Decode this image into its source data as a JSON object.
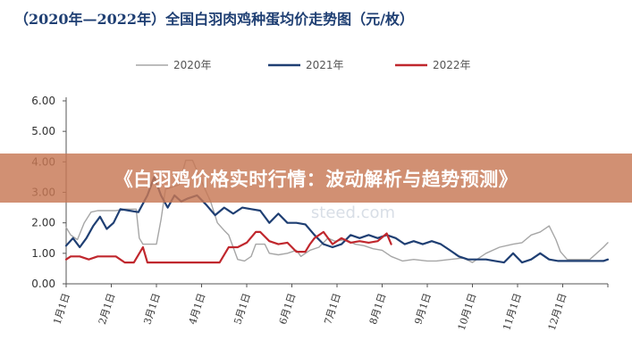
{
  "title": "（2020年—2022年）全国白羽肉鸡种蛋均价走势图（元/枚）",
  "banner": "《白羽鸡价格实时行情：波动解析与趋势预测》",
  "chart_data": {
    "type": "line",
    "title": "（2020年—2022年）全国白羽肉鸡种蛋均价走势图（元/枚）",
    "xlabel": "",
    "ylabel": "",
    "ylim": [
      0,
      6
    ],
    "yticks": [
      "0.00",
      "1.00",
      "2.00",
      "3.00",
      "4.00",
      "5.00",
      "6.00"
    ],
    "categories": [
      "1月1日",
      "2月1日",
      "3月1日",
      "4月1日",
      "5月1日",
      "6月1日",
      "7月1日",
      "8月1日",
      "9月1日",
      "10月1日",
      "11月1日",
      "12月1日"
    ],
    "x_range_months": [
      1,
      13
    ],
    "grid": false,
    "legend_position": "top",
    "series": [
      {
        "name": "2020年",
        "color": "#a6a6a6",
        "x": [
          1.0,
          1.1,
          1.25,
          1.4,
          1.55,
          1.7,
          1.9,
          2.1,
          2.3,
          2.45,
          2.55,
          2.62,
          2.7,
          2.85,
          3.0,
          3.1,
          3.2,
          3.5,
          3.65,
          3.8,
          4.0,
          4.2,
          4.35,
          4.5,
          4.6,
          4.8,
          4.95,
          5.1,
          5.2,
          5.4,
          5.5,
          5.7,
          5.9,
          6.1,
          6.2,
          6.4,
          6.6,
          6.8,
          6.95,
          7.2,
          7.4,
          7.6,
          7.8,
          8.0,
          8.2,
          8.45,
          8.7,
          9.0,
          9.2,
          9.5,
          9.8,
          10.0,
          10.3,
          10.6,
          10.9,
          11.1,
          11.3,
          11.5,
          11.7,
          11.85,
          11.95,
          12.1,
          12.3,
          12.6,
          12.9,
          13.0
        ],
        "y": [
          1.85,
          1.6,
          1.45,
          2.0,
          2.35,
          2.4,
          2.4,
          2.4,
          2.45,
          2.45,
          2.45,
          1.5,
          1.3,
          1.3,
          1.3,
          2.1,
          3.1,
          3.25,
          4.05,
          4.05,
          3.35,
          2.7,
          2.0,
          1.75,
          1.6,
          0.8,
          0.75,
          0.9,
          1.3,
          1.3,
          1.0,
          0.95,
          1.0,
          1.1,
          0.9,
          1.1,
          1.2,
          1.5,
          1.4,
          1.45,
          1.3,
          1.25,
          1.15,
          1.1,
          0.9,
          0.75,
          0.8,
          0.75,
          0.75,
          0.8,
          0.85,
          0.7,
          1.0,
          1.2,
          1.3,
          1.35,
          1.6,
          1.7,
          1.9,
          1.45,
          1.05,
          0.8,
          0.8,
          0.8,
          1.2,
          1.35
        ]
      },
      {
        "name": "2021年",
        "color": "#1f3f73",
        "x": [
          1.0,
          1.15,
          1.3,
          1.45,
          1.6,
          1.75,
          1.9,
          2.05,
          2.2,
          2.4,
          2.6,
          2.8,
          2.95,
          3.1,
          3.25,
          3.4,
          3.55,
          3.7,
          3.9,
          4.1,
          4.3,
          4.5,
          4.7,
          4.9,
          5.1,
          5.3,
          5.5,
          5.7,
          5.9,
          6.1,
          6.3,
          6.5,
          6.7,
          6.9,
          7.1,
          7.3,
          7.5,
          7.7,
          7.9,
          8.1,
          8.3,
          8.5,
          8.7,
          8.9,
          9.1,
          9.3,
          9.5,
          9.7,
          9.9,
          10.1,
          10.3,
          10.5,
          10.7,
          10.9,
          11.1,
          11.3,
          11.5,
          11.7,
          11.9,
          12.1,
          12.3,
          12.5,
          12.7,
          12.9,
          13.0
        ],
        "y": [
          1.25,
          1.5,
          1.2,
          1.5,
          1.9,
          2.2,
          1.8,
          2.0,
          2.45,
          2.4,
          2.35,
          2.9,
          3.5,
          2.9,
          2.5,
          2.9,
          2.7,
          2.8,
          2.9,
          2.6,
          2.25,
          2.5,
          2.3,
          2.5,
          2.45,
          2.4,
          2.0,
          2.3,
          2.0,
          2.0,
          1.95,
          1.6,
          1.3,
          1.2,
          1.3,
          1.6,
          1.5,
          1.6,
          1.5,
          1.6,
          1.5,
          1.3,
          1.4,
          1.3,
          1.4,
          1.3,
          1.1,
          0.9,
          0.8,
          0.8,
          0.8,
          0.75,
          0.7,
          1.0,
          0.7,
          0.8,
          1.0,
          0.8,
          0.75,
          0.75,
          0.75,
          0.75,
          0.75,
          0.75,
          0.8
        ]
      },
      {
        "name": "2022年",
        "color": "#c0272d",
        "x": [
          1.0,
          1.1,
          1.3,
          1.5,
          1.7,
          1.9,
          2.1,
          2.3,
          2.5,
          2.7,
          2.8,
          2.95,
          3.1,
          3.3,
          3.5,
          3.7,
          3.9,
          4.1,
          4.2,
          4.4,
          4.6,
          4.8,
          5.0,
          5.2,
          5.3,
          5.5,
          5.7,
          5.9,
          6.1,
          6.3,
          6.4,
          6.5,
          6.7,
          6.9,
          7.1,
          7.3,
          7.5,
          7.7,
          7.9,
          8.1,
          8.2
        ],
        "y": [
          0.8,
          0.9,
          0.9,
          0.8,
          0.9,
          0.9,
          0.9,
          0.7,
          0.7,
          1.2,
          0.7,
          0.7,
          0.7,
          0.7,
          0.7,
          0.7,
          0.7,
          0.7,
          0.7,
          0.7,
          1.2,
          1.2,
          1.35,
          1.7,
          1.7,
          1.4,
          1.3,
          1.35,
          1.05,
          1.05,
          1.3,
          1.5,
          1.7,
          1.3,
          1.5,
          1.35,
          1.4,
          1.35,
          1.4,
          1.65,
          1.3
        ]
      }
    ]
  },
  "watermark": "steed.com"
}
